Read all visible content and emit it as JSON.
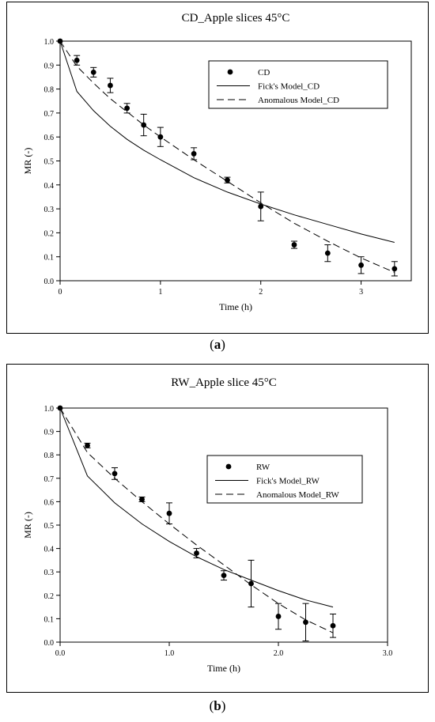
{
  "chart_data": [
    {
      "type": "scatter",
      "title": "CD_Apple slices 45°C",
      "xlabel": "Time (h)",
      "ylabel": "MR (-)",
      "xlim": [
        0,
        3.5
      ],
      "ylim": [
        0,
        1.0
      ],
      "xticks": [
        0,
        1,
        2,
        3
      ],
      "xtick_labels": [
        "0",
        "1",
        "2",
        "3"
      ],
      "yticks": [
        0,
        0.1,
        0.2,
        0.3,
        0.4,
        0.5,
        0.6,
        0.7,
        0.8,
        0.9,
        1.0
      ],
      "ytick_labels": [
        "0.0",
        "0.1",
        "0.2",
        "0.3",
        "0.4",
        "0.5",
        "0.6",
        "0.7",
        "0.8",
        "0.9",
        "1.0"
      ],
      "legend_position": "top-right",
      "caption": "a",
      "series": [
        {
          "name": "CD",
          "style": "points-with-errorbars",
          "x": [
            0,
            0.167,
            0.333,
            0.5,
            0.667,
            0.833,
            1.0,
            1.333,
            1.667,
            2.0,
            2.333,
            2.667,
            3.0,
            3.333
          ],
          "y": [
            1.0,
            0.92,
            0.87,
            0.815,
            0.72,
            0.65,
            0.6,
            0.53,
            0.42,
            0.31,
            0.15,
            0.115,
            0.065,
            0.05
          ],
          "err": [
            0,
            0.02,
            0.02,
            0.03,
            0.02,
            0.045,
            0.04,
            0.025,
            0.012,
            0.06,
            0.015,
            0.035,
            0.035,
            0.03
          ]
        },
        {
          "name": "Fick's Model_CD",
          "style": "solid-line",
          "x": [
            0,
            0.167,
            0.333,
            0.5,
            0.667,
            0.833,
            1.0,
            1.333,
            1.667,
            2.0,
            2.333,
            2.667,
            3.0,
            3.333
          ],
          "y": [
            1.0,
            0.79,
            0.71,
            0.645,
            0.59,
            0.545,
            0.505,
            0.43,
            0.37,
            0.32,
            0.275,
            0.235,
            0.195,
            0.16
          ]
        },
        {
          "name": "Anomalous Model_CD",
          "style": "dashed-line",
          "x": [
            0,
            0.167,
            0.333,
            0.5,
            0.667,
            0.833,
            1.0,
            1.333,
            1.667,
            2.0,
            2.333,
            2.667,
            3.0,
            3.333
          ],
          "y": [
            1.0,
            0.895,
            0.825,
            0.76,
            0.705,
            0.65,
            0.6,
            0.505,
            0.415,
            0.325,
            0.24,
            0.165,
            0.095,
            0.035
          ]
        }
      ]
    },
    {
      "type": "scatter",
      "title": "RW_Apple slice 45°C",
      "xlabel": "Time (h)",
      "ylabel": "MR (-)",
      "xlim": [
        0,
        3.0
      ],
      "ylim": [
        0,
        1.0
      ],
      "xticks": [
        0,
        1,
        2,
        3
      ],
      "xtick_labels": [
        "0.0",
        "1.0",
        "2.0",
        "3.0"
      ],
      "yticks": [
        0,
        0.1,
        0.2,
        0.3,
        0.4,
        0.5,
        0.6,
        0.7,
        0.8,
        0.9,
        1.0
      ],
      "ytick_labels": [
        "0.0",
        "0.1",
        "0.2",
        "0.3",
        "0.4",
        "0.5",
        "0.6",
        "0.7",
        "0.8",
        "0.9",
        "1.0"
      ],
      "legend_position": "top-right",
      "caption": "b",
      "series": [
        {
          "name": "RW",
          "style": "points-with-errorbars",
          "x": [
            0,
            0.25,
            0.5,
            0.75,
            1.0,
            1.25,
            1.5,
            1.75,
            2.0,
            2.25,
            2.5
          ],
          "y": [
            1.0,
            0.84,
            0.72,
            0.61,
            0.55,
            0.38,
            0.285,
            0.25,
            0.11,
            0.085,
            0.07
          ],
          "err": [
            0,
            0.01,
            0.025,
            0.01,
            0.045,
            0.02,
            0.02,
            0.1,
            0.055,
            0.08,
            0.05
          ]
        },
        {
          "name": "Fick's Model_RW",
          "style": "solid-line",
          "x": [
            0,
            0.25,
            0.5,
            0.75,
            1.0,
            1.25,
            1.5,
            1.75,
            2.0,
            2.25,
            2.5
          ],
          "y": [
            1.0,
            0.71,
            0.595,
            0.505,
            0.43,
            0.365,
            0.31,
            0.265,
            0.22,
            0.18,
            0.15
          ]
        },
        {
          "name": "Anomalous Model_RW",
          "style": "dashed-line",
          "x": [
            0,
            0.25,
            0.5,
            0.75,
            1.0,
            1.25,
            1.5,
            1.75,
            2.0,
            2.25,
            2.5
          ],
          "y": [
            1.0,
            0.81,
            0.7,
            0.6,
            0.505,
            0.415,
            0.33,
            0.245,
            0.165,
            0.095,
            0.04
          ]
        }
      ]
    }
  ]
}
